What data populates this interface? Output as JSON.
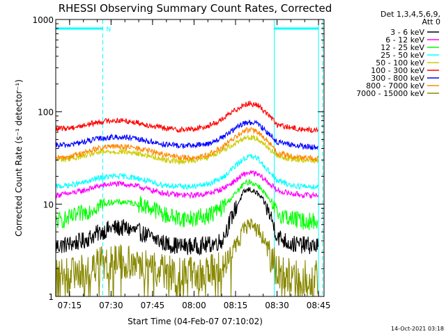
{
  "chart_data": {
    "type": "line",
    "title": "RHESSI Observing Summary Count Rates, Corrected",
    "xlabel": "Start Time (04-Feb-07 07:10:02)",
    "ylabel": "Corrected Count Rate (s⁻¹ detector⁻¹)",
    "yscale": "log",
    "ylim": [
      1,
      1000
    ],
    "xlim": [
      "07:10",
      "08:47"
    ],
    "x_ticks": [
      "07:15",
      "07:30",
      "07:45",
      "08:00",
      "08:15",
      "08:30",
      "08:45"
    ],
    "y_ticks": [
      "1",
      "10",
      "100",
      "1000"
    ],
    "legend_header": [
      "Det 1,3,4,5,6,9,",
      "Att 0"
    ],
    "legend_position": "top-right outside plot",
    "timestamp": "14-Oct-2021 03:18",
    "annotation_label": "N",
    "night_intervals": [
      [
        "07:10",
        "07:27"
      ],
      [
        "08:29",
        "08:45"
      ]
    ],
    "times": [
      "07:10",
      "07:15",
      "07:20",
      "07:25",
      "07:30",
      "07:35",
      "07:40",
      "07:45",
      "07:50",
      "07:55",
      "08:00",
      "08:05",
      "08:10",
      "08:15",
      "08:18",
      "08:20",
      "08:23",
      "08:25",
      "08:28",
      "08:30",
      "08:35",
      "08:40",
      "08:45"
    ],
    "series": [
      {
        "name": "3 - 6 keV",
        "color": "#000000",
        "values": [
          3.5,
          3.7,
          4.0,
          4.8,
          5.5,
          5.5,
          5.0,
          4.3,
          3.7,
          3.5,
          3.5,
          3.6,
          4.0,
          9.0,
          13.5,
          14.5,
          13.0,
          11.0,
          7.0,
          4.5,
          3.7,
          3.6,
          3.5
        ]
      },
      {
        "name": "6 - 12 keV",
        "color": "#ff00ff",
        "values": [
          12.5,
          13,
          14,
          15.5,
          16.5,
          16.5,
          15.5,
          14,
          13,
          12.5,
          12.5,
          13,
          14.5,
          18,
          21,
          22,
          21,
          19,
          16,
          14,
          13,
          12.5,
          12.5
        ]
      },
      {
        "name": "12 - 25 keV",
        "color": "#00ff00",
        "values": [
          6.5,
          7,
          8,
          9.5,
          10.5,
          10.5,
          10,
          9,
          7.5,
          7,
          7,
          7.5,
          9,
          13,
          16.5,
          17.5,
          16,
          14,
          10,
          8,
          7,
          6.5,
          6.5
        ]
      },
      {
        "name": "25 - 50 keV",
        "color": "#00ffff",
        "values": [
          15.5,
          16,
          17,
          19,
          20,
          20,
          19,
          17,
          16,
          15.5,
          15.5,
          16.5,
          19,
          26,
          31,
          33,
          31,
          27,
          21,
          18,
          16,
          15.5,
          15.5
        ]
      },
      {
        "name": "50 - 100 keV",
        "color": "#cccc00",
        "values": [
          30,
          31,
          33,
          36,
          37,
          37,
          35,
          33,
          30,
          29,
          30,
          32,
          38,
          46,
          52,
          53,
          51,
          46,
          38,
          33,
          31,
          30,
          30
        ]
      },
      {
        "name": "100 - 300 keV",
        "color": "#ff0000",
        "values": [
          65,
          67,
          71,
          77,
          81,
          80,
          76,
          70,
          66,
          64,
          65,
          70,
          82,
          105,
          120,
          123,
          118,
          105,
          86,
          72,
          67,
          64,
          63
        ]
      },
      {
        "name": "300 - 800 keV",
        "color": "#0000ff",
        "values": [
          43,
          44,
          47,
          51,
          53,
          53,
          50,
          47,
          44,
          43,
          43,
          45,
          52,
          66,
          75,
          77,
          74,
          66,
          55,
          47,
          44,
          42,
          41
        ]
      },
      {
        "name": "800 - 7000 keV",
        "color": "#ff8800",
        "values": [
          31,
          33,
          36,
          40,
          42,
          42,
          40,
          37,
          34,
          32,
          32,
          34,
          41,
          53,
          62,
          64,
          61,
          53,
          43,
          36,
          33,
          32,
          31
        ]
      },
      {
        "name": "7000 - 15000 keV",
        "color": "#888800",
        "values": [
          1.6,
          1.7,
          1.9,
          2.2,
          2.4,
          2.4,
          2.3,
          2.0,
          1.8,
          1.7,
          1.7,
          1.8,
          2.1,
          3.5,
          5.3,
          5.9,
          5.4,
          4.2,
          2.6,
          1.9,
          1.7,
          1.6,
          1.6
        ]
      }
    ]
  }
}
